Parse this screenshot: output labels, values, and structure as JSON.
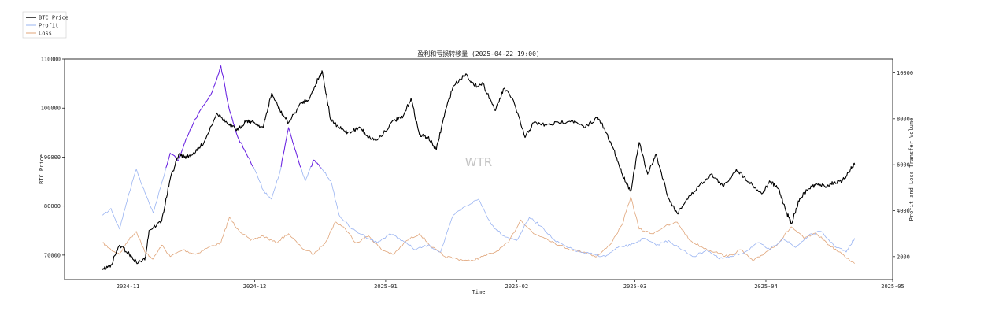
{
  "chart_data": {
    "type": "line",
    "title": "盈利和亏损转移量 (2025-04-22 19:00)",
    "xlabel": "Time",
    "ylabel_left": "BTC Price",
    "ylabel_right": "Profit and Loss Transfer Volume",
    "watermark": "WTR",
    "x_ticks": [
      "2024-11",
      "2024-12",
      "2025-01",
      "2025-02",
      "2025-03",
      "2025-04",
      "2025-05"
    ],
    "x_range": [
      "2024-10-17",
      "2025-05-01"
    ],
    "y_left_range": [
      65000,
      110000
    ],
    "y_left_ticks": [
      70000,
      80000,
      90000,
      100000,
      110000
    ],
    "y_right_range": [
      1000,
      10600
    ],
    "y_right_ticks": [
      2000,
      4000,
      6000,
      8000,
      10000
    ],
    "grid": false,
    "legend_position": "top-left, outside plot",
    "colors": {
      "price": "#000000",
      "profit": "#9ab4f2",
      "loss": "#e0a57a",
      "profit_high": "#6a1fe0"
    },
    "series": [
      {
        "name": "BTC Price",
        "axis": "left",
        "points": [
          [
            "2024-10-26",
            67000
          ],
          [
            "2024-10-28",
            68000
          ],
          [
            "2024-10-30",
            72000
          ],
          [
            "2024-11-01",
            70500
          ],
          [
            "2024-11-03",
            68500
          ],
          [
            "2024-11-05",
            69000
          ],
          [
            "2024-11-06",
            75000
          ],
          [
            "2024-11-09",
            77000
          ],
          [
            "2024-11-11",
            85500
          ],
          [
            "2024-11-13",
            90500
          ],
          [
            "2024-11-15",
            90000
          ],
          [
            "2024-11-17",
            91000
          ],
          [
            "2024-11-19",
            93000
          ],
          [
            "2024-11-22",
            99000
          ],
          [
            "2024-11-25",
            96500
          ],
          [
            "2024-11-27",
            95500
          ],
          [
            "2024-11-29",
            97500
          ],
          [
            "2024-12-01",
            97000
          ],
          [
            "2024-12-03",
            96000
          ],
          [
            "2024-12-05",
            103000
          ],
          [
            "2024-12-07",
            99500
          ],
          [
            "2024-12-09",
            97000
          ],
          [
            "2024-12-12",
            101000
          ],
          [
            "2024-12-14",
            102000
          ],
          [
            "2024-12-16",
            106000
          ],
          [
            "2024-12-17",
            107500
          ],
          [
            "2024-12-19",
            97500
          ],
          [
            "2024-12-21",
            96000
          ],
          [
            "2024-12-23",
            95000
          ],
          [
            "2024-12-26",
            96000
          ],
          [
            "2024-12-28",
            94000
          ],
          [
            "2024-12-30",
            93500
          ],
          [
            "2025-01-03",
            97500
          ],
          [
            "2025-01-05",
            98000
          ],
          [
            "2025-01-07",
            102000
          ],
          [
            "2025-01-09",
            94500
          ],
          [
            "2025-01-11",
            94000
          ],
          [
            "2025-01-13",
            91500
          ],
          [
            "2025-01-15",
            99000
          ],
          [
            "2025-01-17",
            104500
          ],
          [
            "2025-01-20",
            107000
          ],
          [
            "2025-01-22",
            104500
          ],
          [
            "2025-01-24",
            105000
          ],
          [
            "2025-01-27",
            99500
          ],
          [
            "2025-01-29",
            104000
          ],
          [
            "2025-01-31",
            102000
          ],
          [
            "2025-02-03",
            94000
          ],
          [
            "2025-02-05",
            97000
          ],
          [
            "2025-02-08",
            96500
          ],
          [
            "2025-02-11",
            97000
          ],
          [
            "2025-02-14",
            97500
          ],
          [
            "2025-02-17",
            96000
          ],
          [
            "2025-02-20",
            98000
          ],
          [
            "2025-02-21",
            97000
          ],
          [
            "2025-02-24",
            91500
          ],
          [
            "2025-02-26",
            86500
          ],
          [
            "2025-02-28",
            83000
          ],
          [
            "2025-03-02",
            93000
          ],
          [
            "2025-03-04",
            86500
          ],
          [
            "2025-03-06",
            90500
          ],
          [
            "2025-03-09",
            81500
          ],
          [
            "2025-03-11",
            78500
          ],
          [
            "2025-03-13",
            81000
          ],
          [
            "2025-03-16",
            84000
          ],
          [
            "2025-03-19",
            86500
          ],
          [
            "2025-03-22",
            84000
          ],
          [
            "2025-03-25",
            87500
          ],
          [
            "2025-03-28",
            85000
          ],
          [
            "2025-03-31",
            82500
          ],
          [
            "2025-04-02",
            85000
          ],
          [
            "2025-04-04",
            83500
          ],
          [
            "2025-04-06",
            78500
          ],
          [
            "2025-04-07",
            76500
          ],
          [
            "2025-04-09",
            81500
          ],
          [
            "2025-04-11",
            83500
          ],
          [
            "2025-04-13",
            84500
          ],
          [
            "2025-04-15",
            84000
          ],
          [
            "2025-04-17",
            84800
          ],
          [
            "2025-04-19",
            85000
          ],
          [
            "2025-04-21",
            87500
          ],
          [
            "2025-04-22",
            88500
          ]
        ]
      },
      {
        "name": "Profit",
        "axis": "right",
        "points": [
          [
            "2024-10-26",
            3800
          ],
          [
            "2024-10-28",
            4100
          ],
          [
            "2024-10-30",
            3200
          ],
          [
            "2024-11-01",
            4600
          ],
          [
            "2024-11-03",
            5800
          ],
          [
            "2024-11-05",
            4800
          ],
          [
            "2024-11-07",
            3900
          ],
          [
            "2024-11-09",
            5200
          ],
          [
            "2024-11-11",
            6500
          ],
          [
            "2024-11-13",
            6200
          ],
          [
            "2024-11-15",
            7200
          ],
          [
            "2024-11-17",
            8000
          ],
          [
            "2024-11-19",
            8600
          ],
          [
            "2024-11-21",
            9200
          ],
          [
            "2024-11-23",
            10300
          ],
          [
            "2024-11-25",
            8400
          ],
          [
            "2024-11-27",
            7200
          ],
          [
            "2024-11-29",
            6500
          ],
          [
            "2024-12-01",
            5800
          ],
          [
            "2024-12-03",
            4900
          ],
          [
            "2024-12-05",
            4500
          ],
          [
            "2024-12-07",
            5700
          ],
          [
            "2024-12-09",
            7600
          ],
          [
            "2024-12-11",
            6400
          ],
          [
            "2024-12-13",
            5300
          ],
          [
            "2024-12-15",
            6200
          ],
          [
            "2024-12-17",
            5800
          ],
          [
            "2024-12-19",
            5300
          ],
          [
            "2024-12-21",
            3800
          ],
          [
            "2024-12-24",
            3200
          ],
          [
            "2024-12-27",
            2900
          ],
          [
            "2024-12-30",
            2600
          ],
          [
            "2025-01-02",
            3000
          ],
          [
            "2025-01-05",
            2700
          ],
          [
            "2025-01-08",
            2300
          ],
          [
            "2025-01-11",
            2500
          ],
          [
            "2025-01-14",
            2200
          ],
          [
            "2025-01-17",
            3800
          ],
          [
            "2025-01-20",
            4200
          ],
          [
            "2025-01-23",
            4500
          ],
          [
            "2025-01-26",
            3400
          ],
          [
            "2025-01-29",
            2900
          ],
          [
            "2025-02-01",
            2700
          ],
          [
            "2025-02-04",
            3700
          ],
          [
            "2025-02-07",
            3300
          ],
          [
            "2025-02-10",
            2700
          ],
          [
            "2025-02-13",
            2400
          ],
          [
            "2025-02-16",
            2200
          ],
          [
            "2025-02-19",
            2100
          ],
          [
            "2025-02-22",
            2000
          ],
          [
            "2025-02-25",
            2400
          ],
          [
            "2025-02-28",
            2500
          ],
          [
            "2025-03-03",
            2800
          ],
          [
            "2025-03-06",
            2500
          ],
          [
            "2025-03-09",
            2700
          ],
          [
            "2025-03-12",
            2300
          ],
          [
            "2025-03-15",
            2000
          ],
          [
            "2025-03-18",
            2300
          ],
          [
            "2025-03-21",
            1900
          ],
          [
            "2025-03-24",
            2000
          ],
          [
            "2025-03-27",
            2200
          ],
          [
            "2025-03-30",
            2600
          ],
          [
            "2025-04-02",
            2300
          ],
          [
            "2025-04-05",
            2800
          ],
          [
            "2025-04-08",
            2400
          ],
          [
            "2025-04-11",
            2900
          ],
          [
            "2025-04-14",
            3100
          ],
          [
            "2025-04-17",
            2500
          ],
          [
            "2025-04-20",
            2200
          ],
          [
            "2025-04-22",
            2800
          ]
        ]
      },
      {
        "name": "Loss",
        "axis": "right",
        "points": [
          [
            "2024-10-26",
            2600
          ],
          [
            "2024-10-28",
            2300
          ],
          [
            "2024-10-30",
            2100
          ],
          [
            "2024-11-01",
            2700
          ],
          [
            "2024-11-03",
            3100
          ],
          [
            "2024-11-05",
            2200
          ],
          [
            "2024-11-07",
            1900
          ],
          [
            "2024-11-09",
            2500
          ],
          [
            "2024-11-11",
            2000
          ],
          [
            "2024-11-14",
            2300
          ],
          [
            "2024-11-17",
            2100
          ],
          [
            "2024-11-20",
            2400
          ],
          [
            "2024-11-23",
            2600
          ],
          [
            "2024-11-25",
            3700
          ],
          [
            "2024-11-27",
            3200
          ],
          [
            "2024-11-30",
            2700
          ],
          [
            "2024-12-03",
            2900
          ],
          [
            "2024-12-06",
            2600
          ],
          [
            "2024-12-09",
            3000
          ],
          [
            "2024-12-12",
            2400
          ],
          [
            "2024-12-15",
            2100
          ],
          [
            "2024-12-18",
            2700
          ],
          [
            "2024-12-20",
            3500
          ],
          [
            "2024-12-22",
            3300
          ],
          [
            "2024-12-25",
            2600
          ],
          [
            "2024-12-28",
            2900
          ],
          [
            "2024-12-31",
            2300
          ],
          [
            "2025-01-03",
            2100
          ],
          [
            "2025-01-06",
            2700
          ],
          [
            "2025-01-09",
            3000
          ],
          [
            "2025-01-12",
            2400
          ],
          [
            "2025-01-15",
            2000
          ],
          [
            "2025-01-18",
            1900
          ],
          [
            "2025-01-21",
            1800
          ],
          [
            "2025-01-24",
            2000
          ],
          [
            "2025-01-27",
            2200
          ],
          [
            "2025-01-30",
            2600
          ],
          [
            "2025-02-02",
            3600
          ],
          [
            "2025-02-05",
            3000
          ],
          [
            "2025-02-08",
            2800
          ],
          [
            "2025-02-11",
            2500
          ],
          [
            "2025-02-14",
            2300
          ],
          [
            "2025-02-17",
            2200
          ],
          [
            "2025-02-20",
            2000
          ],
          [
            "2025-02-23",
            2500
          ],
          [
            "2025-02-26",
            3400
          ],
          [
            "2025-02-28",
            4600
          ],
          [
            "2025-03-02",
            3200
          ],
          [
            "2025-03-05",
            3000
          ],
          [
            "2025-03-08",
            3300
          ],
          [
            "2025-03-11",
            3500
          ],
          [
            "2025-03-14",
            2700
          ],
          [
            "2025-03-17",
            2400
          ],
          [
            "2025-03-20",
            2200
          ],
          [
            "2025-03-23",
            2000
          ],
          [
            "2025-03-26",
            2300
          ],
          [
            "2025-03-29",
            1800
          ],
          [
            "2025-04-01",
            2200
          ],
          [
            "2025-04-04",
            2600
          ],
          [
            "2025-04-07",
            3300
          ],
          [
            "2025-04-10",
            2800
          ],
          [
            "2025-04-13",
            3000
          ],
          [
            "2025-04-16",
            2500
          ],
          [
            "2025-04-19",
            2100
          ],
          [
            "2025-04-22",
            1700
          ]
        ]
      }
    ]
  }
}
